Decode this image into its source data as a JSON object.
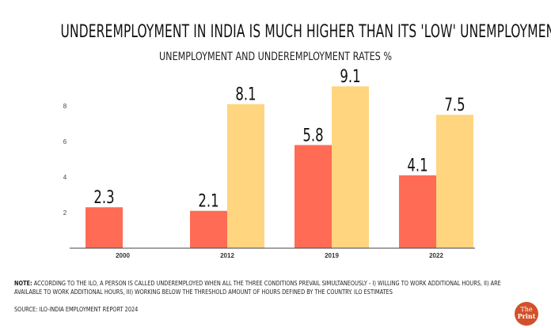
{
  "chart_data": {
    "type": "bar",
    "title": "UNDEREMPLOYMENT IN INDIA IS MUCH HIGHER THAN ITS 'LOW' UNEMPLOYMENT RATES",
    "subtitle": "UNEMPLOYMENT AND UNDEREMPLOYMENT RATES %",
    "categories": [
      "2000",
      "2012",
      "2019",
      "2022"
    ],
    "series": [
      {
        "values": [
          2.3,
          2.1,
          5.8,
          4.1
        ],
        "labels": [
          "2.3",
          "2.1",
          "5.8",
          "4.1"
        ],
        "color": "#ff6b55"
      },
      {
        "values": [
          null,
          8.1,
          9.1,
          7.5
        ],
        "labels": [
          "",
          "8.1",
          "9.1",
          "7.5"
        ],
        "color": "#ffd580"
      }
    ],
    "yticks": [
      "2",
      "4",
      "6",
      "8"
    ],
    "ylim": [
      0,
      10
    ],
    "grid": false,
    "legend": "none"
  },
  "footer": {
    "note_label": "NOTE:",
    "note": "ACCORDING TO THE ILO, A PERSON IS CALLED  UNDEREMPLOYED WHEN ALL THE THREE CONDITIONS PREVAIL SIMULTANEOUSLY - I) WILLING TO WORK ADDITIONAL HOURS, II) ARE AVAILABLE TO WORK ADDITIONAL HOURS, III) WORKING BELOW THE THRESHOLD AMOUNT OF HOURS DEFINED BY THE COUNTRY. ILO ESTIMATES",
    "source": "SOURCE: ILO-INDIA EMPLOYMENT REPORT 2024",
    "logo_text": "The Print"
  }
}
